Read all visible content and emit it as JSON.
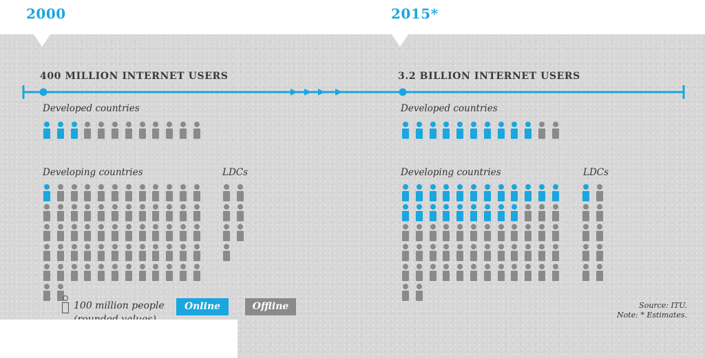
{
  "colors": {
    "online": "#1aa6de",
    "offline": "#8a8a8a",
    "timeline": "#1aa6de",
    "year": "#1aa6de"
  },
  "legend": {
    "unit_label": "100 million people",
    "unit_label_cont": "(rounded values)",
    "online_label": "Online",
    "offline_label": "Offline",
    "icon": "person-outline-icon"
  },
  "source": {
    "source_text": "Source: ITU.",
    "note_text": "Note: * Estimates."
  },
  "chart_data": [
    {
      "type": "pictogram",
      "year_label": "2000",
      "headline": "400 MILLION INTERNET USERS",
      "unit": "100 million people",
      "groups": [
        {
          "id": "developed",
          "label": "Developed countries",
          "online": 3,
          "offline": 9,
          "columns": 12
        },
        {
          "id": "developing",
          "label": "Developing countries",
          "online": 1,
          "offline": 61,
          "columns": 12
        },
        {
          "id": "ldcs",
          "label": "LDCs",
          "online": 0,
          "offline": 7,
          "columns": 2
        }
      ]
    },
    {
      "type": "pictogram",
      "year_label": "2015*",
      "headline": "3.2 BILLION INTERNET USERS",
      "unit": "100 million people",
      "groups": [
        {
          "id": "developed",
          "label": "Developed countries",
          "online": 10,
          "offline": 2,
          "columns": 12
        },
        {
          "id": "developing",
          "label": "Developing countries",
          "online": 21,
          "offline": 41,
          "columns": 12
        },
        {
          "id": "ldcs",
          "label": "LDCs",
          "online": 1,
          "offline": 9,
          "columns": 2
        }
      ]
    }
  ]
}
